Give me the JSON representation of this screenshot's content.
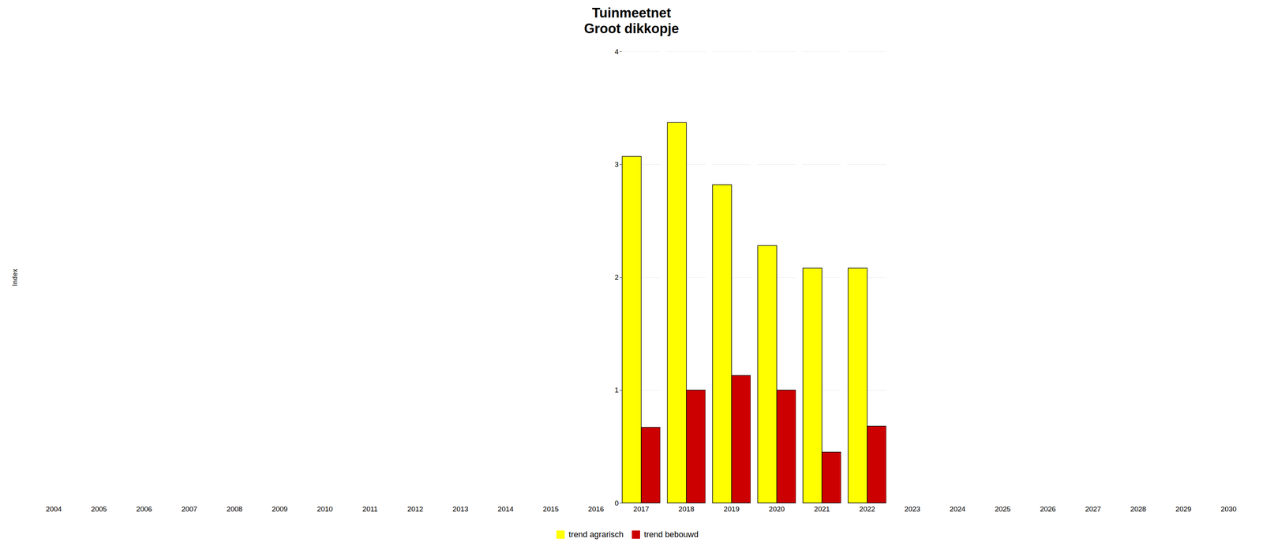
{
  "chart_data": {
    "type": "bar",
    "title": "Tuinmeetnet",
    "subtitle": "Groot dikkopje",
    "ylabel": "Index",
    "categories": [
      "2004",
      "2005",
      "2006",
      "2007",
      "2008",
      "2009",
      "2010",
      "2011",
      "2012",
      "2013",
      "2014",
      "2015",
      "2016",
      "2017",
      "2018",
      "2019",
      "2020",
      "2021",
      "2022",
      "2023",
      "2024",
      "2025",
      "2026",
      "2027",
      "2028",
      "2029",
      "2030"
    ],
    "series": [
      {
        "name": "trend agrarisch",
        "color": "#ffff00",
        "values": [
          null,
          null,
          null,
          null,
          null,
          null,
          null,
          null,
          null,
          null,
          null,
          null,
          null,
          3.07,
          3.37,
          2.82,
          2.28,
          2.08,
          2.08,
          null,
          null,
          null,
          null,
          null,
          null,
          null,
          null
        ]
      },
      {
        "name": "trend bebouwd",
        "color": "#cc0000",
        "values": [
          null,
          null,
          null,
          null,
          null,
          null,
          null,
          null,
          null,
          null,
          null,
          null,
          null,
          0.67,
          1.0,
          1.13,
          1.0,
          0.45,
          0.68,
          null,
          null,
          null,
          null,
          null,
          null,
          null,
          null
        ]
      }
    ],
    "ylim": [
      0,
      4
    ],
    "yticks": [
      0,
      1,
      2,
      3,
      4
    ],
    "grid": true,
    "legend": "bottom"
  }
}
